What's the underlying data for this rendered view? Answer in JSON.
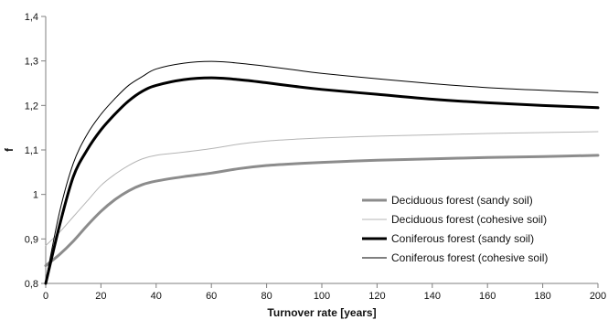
{
  "chart_data": {
    "type": "line",
    "title": "",
    "xlabel": "Turnover rate [years]",
    "ylabel": "f",
    "xlim": [
      0,
      200
    ],
    "ylim": [
      0.8,
      1.4
    ],
    "x_ticks": [
      0,
      20,
      40,
      60,
      80,
      100,
      120,
      140,
      160,
      180,
      200
    ],
    "x_tick_labels": [
      "0",
      "20",
      "40",
      "60",
      "80",
      "100",
      "120",
      "140",
      "160",
      "180",
      "200"
    ],
    "y_ticks": [
      0.8,
      0.9,
      1.0,
      1.1,
      1.2,
      1.3,
      1.4
    ],
    "y_tick_labels": [
      "0,8",
      "0,9",
      "1",
      "1,1",
      "1,2",
      "1,3",
      "1,4"
    ],
    "grid": false,
    "legend_position": "bottom-right",
    "x": [
      0,
      5,
      10,
      15,
      20,
      25,
      30,
      35,
      40,
      50,
      60,
      70,
      80,
      90,
      100,
      120,
      140,
      160,
      180,
      200
    ],
    "series": [
      {
        "name": "Deciduous forest (sandy soil)",
        "color": "#8c8c8c",
        "values": [
          0.84,
          0.865,
          0.895,
          0.93,
          0.962,
          0.988,
          1.008,
          1.022,
          1.03,
          1.04,
          1.048,
          1.058,
          1.065,
          1.069,
          1.072,
          1.077,
          1.08,
          1.083,
          1.085,
          1.088
        ]
      },
      {
        "name": "Deciduous forest (cohesive soil)",
        "color": "#b5b5b5",
        "values": [
          0.885,
          0.915,
          0.95,
          0.985,
          1.02,
          1.045,
          1.065,
          1.08,
          1.088,
          1.095,
          1.103,
          1.113,
          1.12,
          1.124,
          1.127,
          1.131,
          1.134,
          1.137,
          1.139,
          1.141
        ]
      },
      {
        "name": "Coniferous forest (sandy soil)",
        "color": "#000000",
        "values": [
          0.8,
          0.93,
          1.04,
          1.1,
          1.145,
          1.18,
          1.21,
          1.232,
          1.245,
          1.258,
          1.262,
          1.258,
          1.251,
          1.243,
          1.236,
          1.225,
          1.214,
          1.206,
          1.2,
          1.195
        ]
      },
      {
        "name": "Coniferous forest (cohesive soil)",
        "color": "#000000",
        "values": [
          0.805,
          0.96,
          1.07,
          1.135,
          1.18,
          1.215,
          1.245,
          1.265,
          1.282,
          1.295,
          1.299,
          1.295,
          1.288,
          1.28,
          1.272,
          1.26,
          1.249,
          1.24,
          1.234,
          1.229
        ]
      }
    ]
  }
}
